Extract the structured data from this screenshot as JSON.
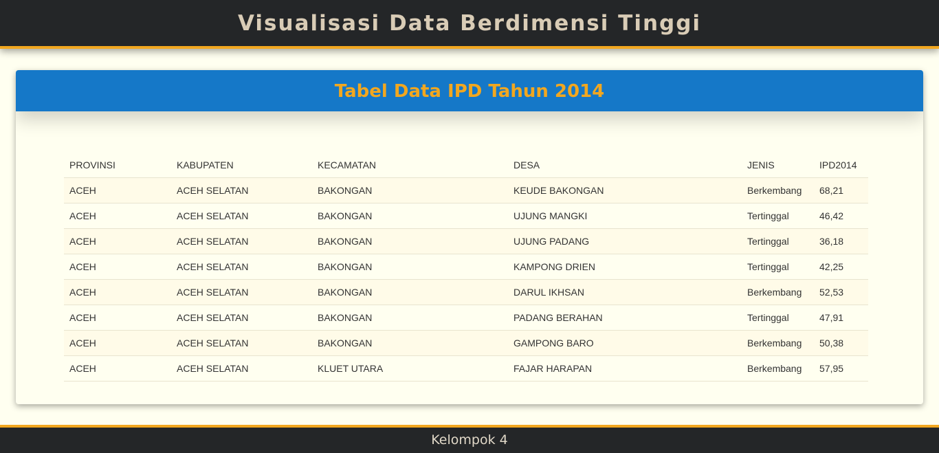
{
  "header": {
    "title": "Visualisasi Data Berdimensi Tinggi"
  },
  "card": {
    "title": "Tabel Data IPD Tahun 2014"
  },
  "table": {
    "columns": [
      "PROVINSI",
      "KABUPATEN",
      "KECAMATAN",
      "DESA",
      "JENIS",
      "IPD2014"
    ],
    "rows": [
      [
        "ACEH",
        "ACEH SELATAN",
        "BAKONGAN",
        "KEUDE BAKONGAN",
        "Berkembang",
        "68,21"
      ],
      [
        "ACEH",
        "ACEH SELATAN",
        "BAKONGAN",
        "UJUNG MANGKI",
        "Tertinggal",
        "46,42"
      ],
      [
        "ACEH",
        "ACEH SELATAN",
        "BAKONGAN",
        "UJUNG PADANG",
        "Tertinggal",
        "36,18"
      ],
      [
        "ACEH",
        "ACEH SELATAN",
        "BAKONGAN",
        "KAMPONG DRIEN",
        "Tertinggal",
        "42,25"
      ],
      [
        "ACEH",
        "ACEH SELATAN",
        "BAKONGAN",
        "DARUL IKHSAN",
        "Berkembang",
        "52,53"
      ],
      [
        "ACEH",
        "ACEH SELATAN",
        "BAKONGAN",
        "PADANG BERAHAN",
        "Tertinggal",
        "47,91"
      ],
      [
        "ACEH",
        "ACEH SELATAN",
        "BAKONGAN",
        "GAMPONG BARO",
        "Berkembang",
        "50,38"
      ],
      [
        "ACEH",
        "ACEH SELATAN",
        "KLUET UTARA",
        "FAJAR HARAPAN",
        "Berkembang",
        "57,95"
      ]
    ]
  },
  "footer": {
    "text": "Kelompok 4"
  },
  "colors": {
    "header_bg": "#242628",
    "accent": "#f2a71f",
    "card_header_bg": "#1578c8",
    "page_bg": "#fffff0"
  }
}
